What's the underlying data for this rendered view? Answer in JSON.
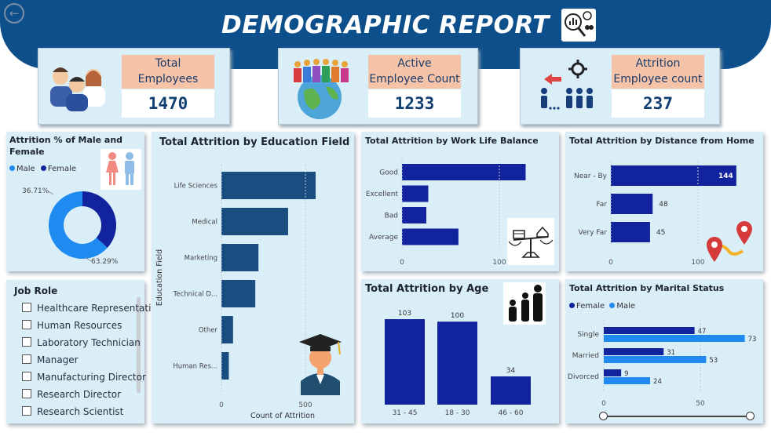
{
  "header": {
    "title": "DEMOGRAPHIC REPORT"
  },
  "kpis": [
    {
      "label_line1": "Total",
      "label_line2": "Employees",
      "value": "1470"
    },
    {
      "label_line1": "Active",
      "label_line2": "Employee Count",
      "value": "1233"
    },
    {
      "label_line1": "Attrition",
      "label_line2": "Employee count",
      "value": "237"
    }
  ],
  "gender_panel": {
    "title_line1": "Attrition % of Male and",
    "title_line2": "Female",
    "legend": [
      {
        "name": "Male",
        "color": "#1f8bf0"
      },
      {
        "name": "Female",
        "color": "#12239e"
      }
    ]
  },
  "job_role": {
    "title": "Job Role",
    "options": [
      "Healthcare Representative",
      "Human Resources",
      "Laboratory Technician",
      "Manager",
      "Manufacturing Director",
      "Research Director",
      "Research Scientist"
    ]
  },
  "marital_panel": {
    "legend": [
      {
        "name": "Female",
        "color": "#12239e"
      },
      {
        "name": "Male",
        "color": "#1f8bf0"
      }
    ]
  },
  "chart_data": [
    {
      "id": "gender",
      "type": "pie",
      "donut": true,
      "labels": [
        "Male",
        "Female"
      ],
      "values": [
        63.29,
        36.71
      ],
      "value_labels": [
        "63.29%",
        "36.71%"
      ],
      "colors": [
        "#1f8bf0",
        "#12239e"
      ],
      "title": "Attrition % of Male and Female"
    },
    {
      "id": "education",
      "type": "bar",
      "orientation": "horizontal",
      "title": "Total Attrition by Education Field",
      "categories": [
        "Life Sciences",
        "Medical",
        "Marketing",
        "Technical D...",
        "Other",
        "Human Res..."
      ],
      "values": [
        89,
        63,
        35,
        32,
        11,
        7
      ],
      "xlabel": "Count of Attrition",
      "ylabel": "Education Field",
      "xticks": [
        "0",
        "500"
      ],
      "xlim": [
        0,
        700
      ],
      "color": "#1a4e80"
    },
    {
      "id": "work_life",
      "type": "bar",
      "orientation": "horizontal",
      "title": "Total Attrition by Work Life Balance",
      "categories": [
        "Good",
        "Excellent",
        "Bad",
        "Average"
      ],
      "values": [
        127,
        27,
        25,
        58
      ],
      "xticks": [
        "0",
        "100"
      ],
      "xlim": [
        0,
        165
      ],
      "color": "#12239e"
    },
    {
      "id": "distance",
      "type": "bar",
      "orientation": "horizontal",
      "title": "Total Attrition by Distance from Home",
      "categories": [
        "Near - By",
        "Far",
        "Very Far"
      ],
      "values": [
        144,
        48,
        45
      ],
      "value_labels": [
        "144",
        "48",
        "45"
      ],
      "xticks": [
        "0",
        "100"
      ],
      "xlim": [
        0,
        150
      ],
      "color": "#12239e"
    },
    {
      "id": "age",
      "type": "bar",
      "orientation": "vertical",
      "title": "Total Attrition by Age",
      "categories": [
        "31 - 45",
        "18 - 30",
        "46 - 60"
      ],
      "values": [
        103,
        100,
        34
      ],
      "value_labels": [
        "103",
        "100",
        "34"
      ],
      "ylim": [
        0,
        110
      ],
      "color": "#12239e"
    },
    {
      "id": "marital",
      "type": "bar",
      "orientation": "horizontal",
      "title": "Total Attrition by Marital Status",
      "categories": [
        "Single",
        "Married",
        "Divorced"
      ],
      "series": [
        {
          "name": "Female",
          "values": [
            47,
            31,
            9
          ],
          "value_labels": [
            "47",
            "31",
            "9"
          ],
          "color": "#12239e"
        },
        {
          "name": "Male",
          "values": [
            73,
            53,
            24
          ],
          "value_labels": [
            "73",
            "53",
            "24"
          ],
          "color": "#1f8bf0"
        }
      ],
      "xticks": [
        "0",
        "50"
      ],
      "xlim": [
        0,
        80
      ]
    }
  ]
}
